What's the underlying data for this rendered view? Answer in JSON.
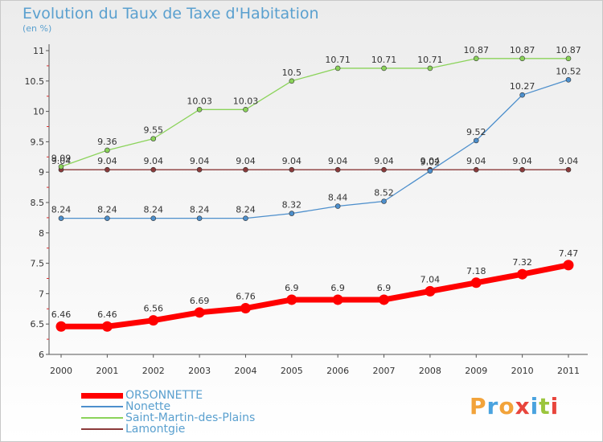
{
  "title": "Evolution du Taux de Taxe d'Habitation",
  "subtitle": "(en %)",
  "logo": {
    "letters": [
      "P",
      "r",
      "o",
      "x",
      "i",
      "t",
      "i"
    ],
    "colors": [
      "#f2a33a",
      "#4aa3df",
      "#f2a33a",
      "#e8453c",
      "#4aa3df",
      "#9bc53d",
      "#e8453c"
    ]
  },
  "chart_data": {
    "type": "line",
    "x": [
      2000,
      2001,
      2002,
      2003,
      2004,
      2005,
      2006,
      2007,
      2008,
      2009,
      2010,
      2011
    ],
    "ylim": [
      6,
      11
    ],
    "yticks": [
      6,
      6.5,
      7,
      7.5,
      8,
      8.5,
      9,
      9.5,
      10,
      10.5,
      11
    ],
    "ytick_labels": [
      "6",
      "6.5",
      "7",
      "7.5",
      "8",
      "8.5",
      "9",
      "9.5",
      "10",
      "10.5",
      "11"
    ],
    "grid": false,
    "legend_position": "bottom-left",
    "series": [
      {
        "name": "ORSONNETTE",
        "color": "#ff0000",
        "values": [
          6.46,
          6.46,
          6.56,
          6.69,
          6.76,
          6.9,
          6.9,
          6.9,
          7.04,
          7.18,
          7.32,
          7.47
        ],
        "labels": [
          "6.46",
          "6.46",
          "6.56",
          "6.69",
          "6.76",
          "6.9",
          "6.9",
          "6.9",
          "7.04",
          "7.18",
          "7.32",
          "7.47"
        ]
      },
      {
        "name": "Nonette",
        "color": "#4d8fcc",
        "values": [
          8.24,
          8.24,
          8.24,
          8.24,
          8.24,
          8.32,
          8.44,
          8.52,
          9.02,
          9.52,
          10.27,
          10.52
        ],
        "labels": [
          "8.24",
          "8.24",
          "8.24",
          "8.24",
          "8.24",
          "8.32",
          "8.44",
          "8.52",
          "9.02",
          "9.52",
          "10.27",
          "10.52"
        ]
      },
      {
        "name": "Saint-Martin-des-Plains",
        "color": "#8bd35a",
        "values": [
          9.09,
          9.36,
          9.55,
          10.03,
          10.03,
          10.5,
          10.71,
          10.71,
          10.71,
          10.87,
          10.87,
          10.87
        ],
        "labels": [
          "9.09",
          "9.36",
          "9.55",
          "10.03",
          "10.03",
          "10.5",
          "10.71",
          "10.71",
          "10.71",
          "10.87",
          "10.87",
          "10.87"
        ]
      },
      {
        "name": "Lamontgie",
        "color": "#8b3a3a",
        "values": [
          9.04,
          9.04,
          9.04,
          9.04,
          9.04,
          9.04,
          9.04,
          9.04,
          9.04,
          9.04,
          9.04,
          9.04
        ],
        "labels": [
          "9.04",
          "9.04",
          "9.04",
          "9.04",
          "9.04",
          "9.04",
          "9.04",
          "9.04",
          "9.04",
          "9.04",
          "9.04",
          "9.04"
        ]
      }
    ]
  }
}
